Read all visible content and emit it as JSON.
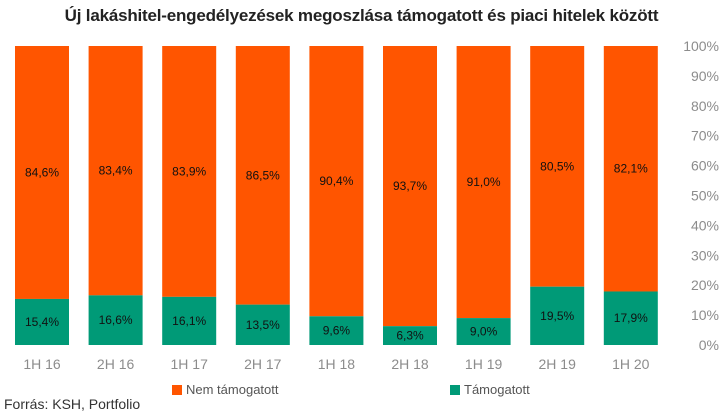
{
  "chart_data": {
    "type": "bar",
    "stacked": true,
    "title": "Új lakáshitel-engedélyezések megoszlása támogatott és piaci hitelek között",
    "categories": [
      "1H 16",
      "2H 16",
      "1H 17",
      "2H 17",
      "1H 18",
      "2H 18",
      "1H 19",
      "2H 19",
      "1H 20"
    ],
    "series": [
      {
        "name": "Támogatott",
        "color": "#009a77",
        "values": [
          15.4,
          16.6,
          16.1,
          13.5,
          9.6,
          6.3,
          9.0,
          19.5,
          17.9
        ],
        "labels": [
          "15,4%",
          "16,6%",
          "16,1%",
          "13,5%",
          "9,6%",
          "6,3%",
          "9,0%",
          "19,5%",
          "17,9%"
        ]
      },
      {
        "name": "Nem támogatott",
        "color": "#ff5500",
        "values": [
          84.6,
          83.4,
          83.9,
          86.5,
          90.4,
          93.7,
          91.0,
          80.5,
          82.1
        ],
        "labels": [
          "84,6%",
          "83,4%",
          "83,9%",
          "86,5%",
          "90,4%",
          "93,7%",
          "91,0%",
          "80,5%",
          "82,1%"
        ]
      }
    ],
    "ylim": [
      0,
      100
    ],
    "yticks": [
      "0%",
      "10%",
      "20%",
      "30%",
      "40%",
      "50%",
      "60%",
      "70%",
      "80%",
      "90%",
      "100%"
    ],
    "grid": false,
    "legend": "bottom"
  },
  "source": "Forrás: KSH, Portfolio"
}
